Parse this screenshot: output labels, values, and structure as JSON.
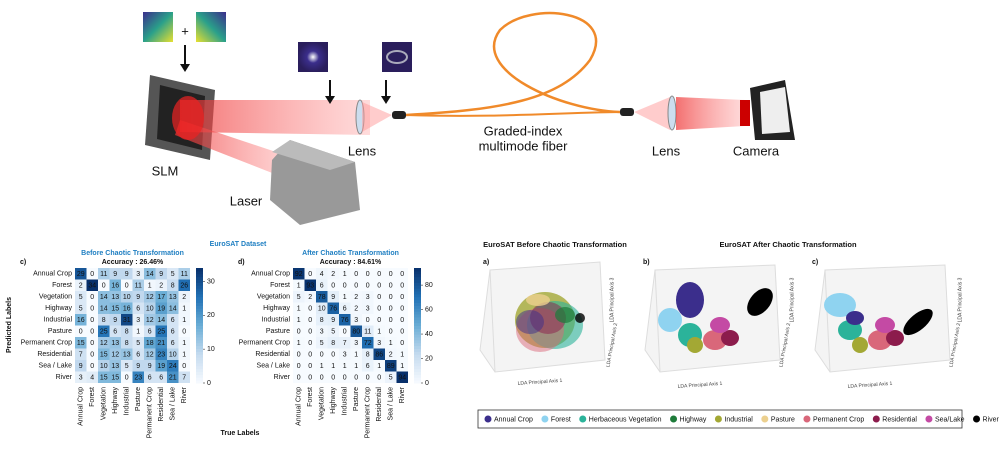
{
  "setup": {
    "plus": "+",
    "slm": "SLM",
    "laser": "Laser",
    "lens_1": "Lens",
    "fiber": [
      "Graded-index",
      "multimode fiber"
    ],
    "lens_2": "Lens",
    "camera": "Camera"
  },
  "classification": {
    "dataset_title": "EuroSAT Dataset",
    "y_axis_label": "Predicted Labels",
    "x_axis_label": "True Labels",
    "categories": [
      "Annual Crop",
      "Forest",
      "Vegetation",
      "Highway",
      "Industrial",
      "Pasture",
      "Permanent Crop",
      "Residential",
      "Sea / Lake",
      "River"
    ],
    "matrices": [
      {
        "label": "c)",
        "title": "Before Chaotic Transformation",
        "accuracy": "Accuracy : 26.46%",
        "vlim": [
          0,
          34
        ],
        "ticks": [
          0,
          10,
          20,
          30
        ],
        "values": [
          [
            29,
            0,
            11,
            9,
            9,
            3,
            14,
            9,
            5,
            11
          ],
          [
            2,
            34,
            0,
            16,
            0,
            11,
            1,
            2,
            8,
            26
          ],
          [
            5,
            0,
            14,
            13,
            10,
            9,
            12,
            17,
            13,
            2
          ],
          [
            5,
            0,
            14,
            15,
            16,
            6,
            10,
            19,
            14,
            1
          ],
          [
            16,
            0,
            8,
            9,
            31,
            3,
            12,
            14,
            6,
            1
          ],
          [
            0,
            0,
            25,
            6,
            8,
            1,
            6,
            25,
            6,
            0
          ],
          [
            15,
            0,
            12,
            13,
            8,
            5,
            18,
            21,
            6,
            1
          ],
          [
            7,
            0,
            15,
            12,
            13,
            6,
            12,
            23,
            10,
            1
          ],
          [
            9,
            0,
            10,
            13,
            5,
            9,
            9,
            19,
            24,
            0
          ],
          [
            3,
            4,
            15,
            15,
            0,
            23,
            6,
            6,
            21,
            7
          ]
        ]
      },
      {
        "label": "d)",
        "title": "After Chaotic Transformation",
        "accuracy": "Accuracy : 84.61%",
        "vlim": [
          0,
          94
        ],
        "ticks": [
          0,
          20,
          40,
          60,
          80
        ],
        "values": [
          [
            92,
            0,
            4,
            2,
            1,
            0,
            0,
            0,
            0,
            0
          ],
          [
            1,
            93,
            6,
            0,
            0,
            0,
            0,
            0,
            0,
            0
          ],
          [
            5,
            2,
            78,
            9,
            1,
            2,
            3,
            0,
            0,
            0
          ],
          [
            1,
            0,
            10,
            76,
            6,
            2,
            3,
            0,
            0,
            0
          ],
          [
            1,
            0,
            8,
            9,
            76,
            3,
            0,
            0,
            0,
            0
          ],
          [
            0,
            0,
            3,
            5,
            0,
            80,
            11,
            1,
            0,
            0
          ],
          [
            1,
            0,
            5,
            8,
            7,
            3,
            72,
            3,
            1,
            0
          ],
          [
            0,
            0,
            0,
            0,
            3,
            1,
            8,
            86,
            2,
            1
          ],
          [
            0,
            0,
            1,
            1,
            1,
            1,
            6,
            1,
            89,
            1
          ],
          [
            0,
            0,
            0,
            0,
            0,
            0,
            0,
            0,
            5,
            94
          ]
        ]
      }
    ]
  },
  "embedding": {
    "titles": [
      "EuroSAT Before Chaotic Transformation",
      "EuroSAT After Chaotic Transformation"
    ],
    "panels": [
      {
        "label": "a)",
        "axes": [
          "LDA Principal Axis 1",
          "LDA Principal Axis 2",
          "LDA Principal Axis 3"
        ]
      },
      {
        "label": "b)",
        "axes": [
          "LDA Principal Axis 1",
          "LDA Principal Axis 2",
          "LDA Principal Axis 3"
        ]
      },
      {
        "label": "c)",
        "axes": [
          "LDA Principal Axis 1",
          "LDA Principal Axis 2",
          "LDA Principal Axis 3"
        ]
      }
    ],
    "legend": [
      {
        "name": "Annual Crop",
        "color": "#3b2e8c"
      },
      {
        "name": "Forest",
        "color": "#8fd3f0"
      },
      {
        "name": "Herbaceous Vegetation",
        "color": "#2bb39a"
      },
      {
        "name": "Highway",
        "color": "#1e7b3a"
      },
      {
        "name": "Industrial",
        "color": "#a3a834"
      },
      {
        "name": "Pasture",
        "color": "#ecd08f"
      },
      {
        "name": "Permanent Crop",
        "color": "#d9677a"
      },
      {
        "name": "Residential",
        "color": "#8c1c4c"
      },
      {
        "name": "Sea/Lake",
        "color": "#c44aa4"
      },
      {
        "name": "River",
        "color": "#000000"
      }
    ]
  }
}
